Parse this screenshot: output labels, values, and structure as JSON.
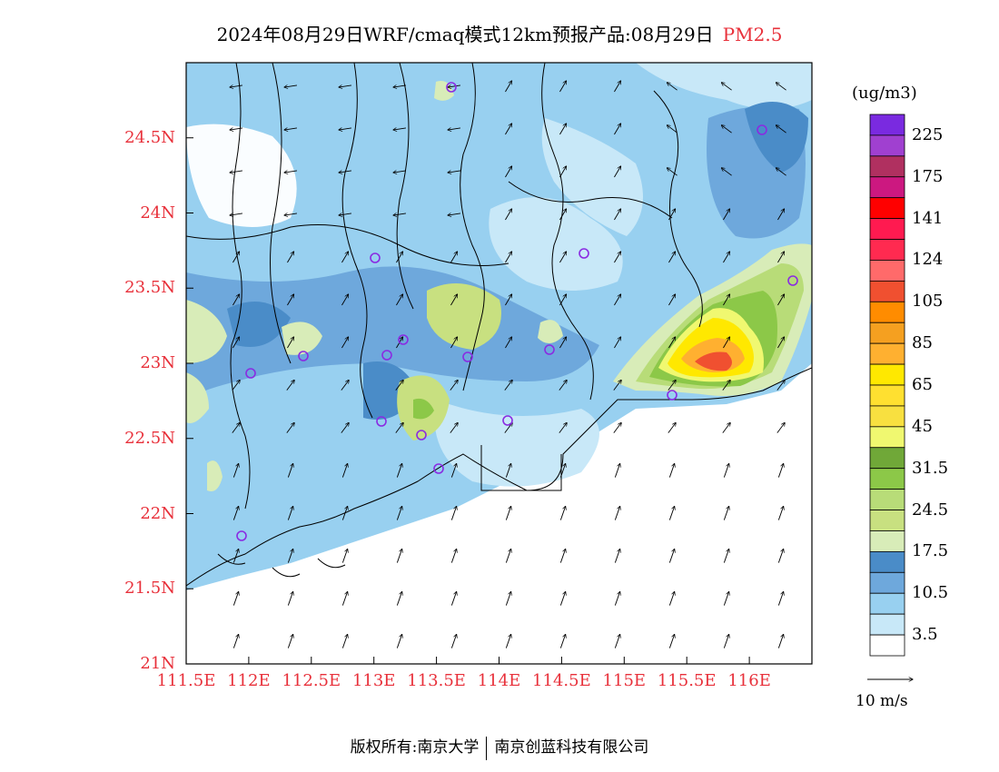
{
  "title": {
    "main": "2024年08月29日WRF/cmaq模式12km预报产品:08月29日",
    "variable": "PM2.5"
  },
  "map": {
    "lat_labels": [
      "24.5N",
      "24N",
      "23.5N",
      "23N",
      "22.5N",
      "22N",
      "21.5N",
      "21N"
    ],
    "lon_labels": [
      "111.5E",
      "112E",
      "112.5E",
      "113E",
      "113.5E",
      "114E",
      "114.5E",
      "115E",
      "115.5E",
      "116E"
    ],
    "lat_range": [
      21,
      25
    ],
    "lon_range": [
      111.5,
      116.5
    ]
  },
  "colorbar": {
    "unit": "(ug/m3)",
    "tick_labels": [
      "225",
      "175",
      "141",
      "124",
      "105",
      "85",
      "65",
      "45",
      "31.5",
      "24.5",
      "17.5",
      "10.5",
      "3.5"
    ],
    "colors_top_to_bottom": [
      "#7a2ae0",
      "#a040d0",
      "#b03060",
      "#cc1880",
      "#ff0000",
      "#ff1a50",
      "#ff2a50",
      "#ff6a6a",
      "#f05030",
      "#ff8c00",
      "#f5a020",
      "#ffb030",
      "#ffe800",
      "#ffe030",
      "#f8e040",
      "#f0f870",
      "#70a838",
      "#8cc848",
      "#b8dc78",
      "#c8e080",
      "#d8ecb8",
      "#4a8cc8",
      "#6ea8dc",
      "#98d0f0",
      "#c8e8f8",
      "#ffffff"
    ]
  },
  "wind_reference": {
    "label": "10 m/s"
  },
  "colors": {
    "label_red": "#e8303a",
    "ocean_white": "#ffffff"
  },
  "footer": {
    "left": "版权所有:南京大学",
    "right": "南京创蓝科技有限公司"
  }
}
